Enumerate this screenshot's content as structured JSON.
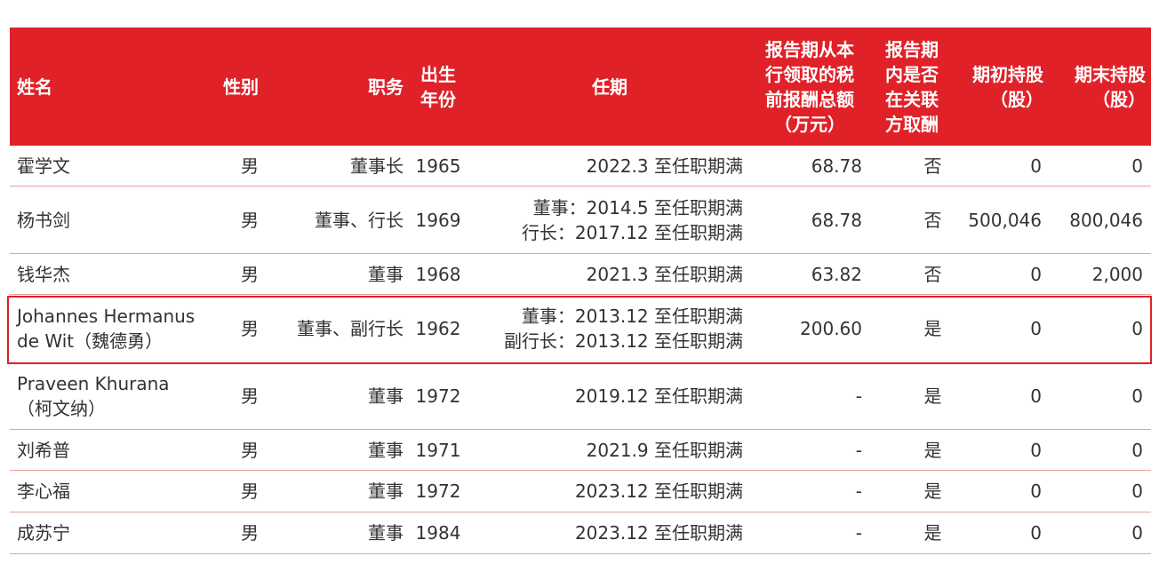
{
  "table": {
    "headers": {
      "name": "姓名",
      "gender": "性别",
      "position": "职务",
      "birth_year": "出生\n年份",
      "term": "任期",
      "remuneration": "报告期从本\n行领取的税\n前报酬总额\n（万元）",
      "related_party": "报告期\n内是否\n在关联\n方取酬",
      "shares_begin": "期初持股\n（股）",
      "shares_end": "期末持股\n（股）"
    },
    "rows": [
      {
        "name": "霍学文",
        "gender": "男",
        "position": "董事长",
        "birth_year": "1965",
        "term": "2022.3 至任职期满",
        "remuneration": "68.78",
        "related_party": "否",
        "shares_begin": "0",
        "shares_end": "0"
      },
      {
        "name": "杨书剑",
        "gender": "男",
        "position": "董事、行长",
        "birth_year": "1969",
        "term": "董事：2014.5 至任职期满\n行长：2017.12 至任职期满",
        "remuneration": "68.78",
        "related_party": "否",
        "shares_begin": "500,046",
        "shares_end": "800,046"
      },
      {
        "name": "钱华杰",
        "gender": "男",
        "position": "董事",
        "birth_year": "1968",
        "term": "2021.3 至任职期满",
        "remuneration": "63.82",
        "related_party": "否",
        "shares_begin": "0",
        "shares_end": "2,000"
      },
      {
        "name": "Johannes Hermanus\nde Wit（魏德勇）",
        "gender": "男",
        "position": "董事、副行长",
        "birth_year": "1962",
        "term": "董事：2013.12 至任职期满\n副行长：2013.12 至任职期满",
        "remuneration": "200.60",
        "related_party": "是",
        "shares_begin": "0",
        "shares_end": "0"
      },
      {
        "name": "Praveen Khurana\n（柯文纳）",
        "gender": "男",
        "position": "董事",
        "birth_year": "1972",
        "term": "2019.12 至任职期满",
        "remuneration": "-",
        "related_party": "是",
        "shares_begin": "0",
        "shares_end": "0"
      },
      {
        "name": "刘希普",
        "gender": "男",
        "position": "董事",
        "birth_year": "1971",
        "term": "2021.9 至任职期满",
        "remuneration": "-",
        "related_party": "是",
        "shares_begin": "0",
        "shares_end": "0"
      },
      {
        "name": "李心福",
        "gender": "男",
        "position": "董事",
        "birth_year": "1972",
        "term": "2023.12 至任职期满",
        "remuneration": "-",
        "related_party": "是",
        "shares_begin": "0",
        "shares_end": "0"
      },
      {
        "name": "成苏宁",
        "gender": "男",
        "position": "董事",
        "birth_year": "1984",
        "term": "2023.12 至任职期满",
        "remuneration": "-",
        "related_party": "是",
        "shares_begin": "0",
        "shares_end": "0"
      }
    ]
  },
  "colors": {
    "header_bg": "#e02128",
    "header_text": "#ffffff",
    "row_divider": "#e8a0a0",
    "highlight_border": "#e02128"
  }
}
